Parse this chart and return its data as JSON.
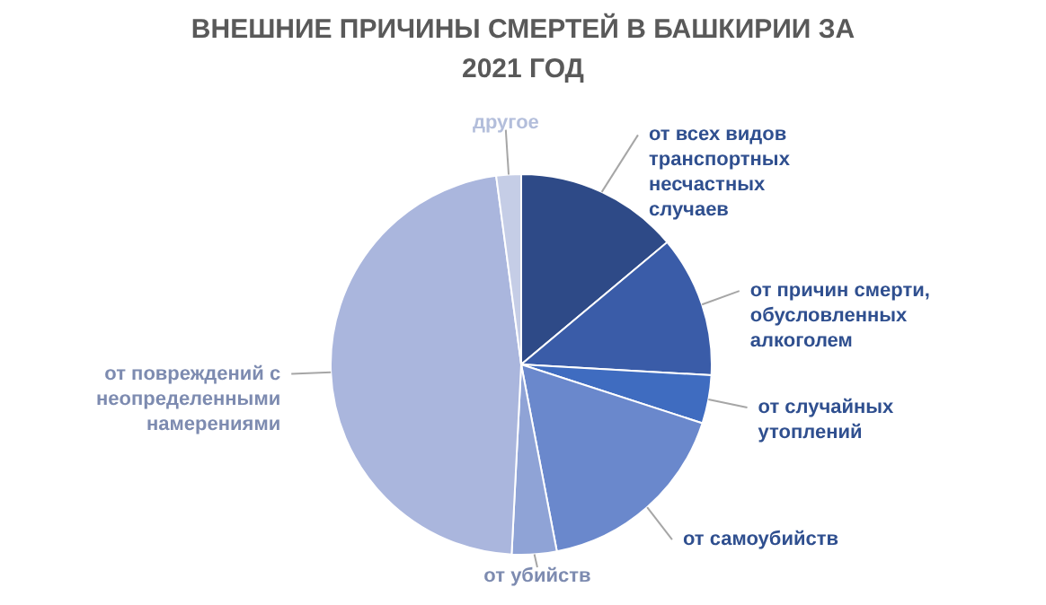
{
  "chart_data": {
    "type": "pie",
    "title": "ВНЕШНИЕ ПРИЧИНЫ СМЕРТЕЙ В БАШКИРИИ ЗА\n2021 ГОД",
    "categories": [
      "от всех видов\nтранспортных\nнесчастных\nслучаев",
      "от причин смерти,\nобусловленных\nалкоголем",
      "от случайных\nутоплений",
      "от самоубийств",
      "от убийств",
      "от повреждений с\nнеопределенными\nнамерениями",
      "другое"
    ],
    "values": [
      13.9,
      12.0,
      4.1,
      17.0,
      3.8,
      47.1,
      2.1
    ],
    "colors": [
      "#2e4a87",
      "#3a5ca8",
      "#3f6cc0",
      "#6a88cc",
      "#8fa3d6",
      "#aab6dd",
      "#c5cde6"
    ]
  }
}
